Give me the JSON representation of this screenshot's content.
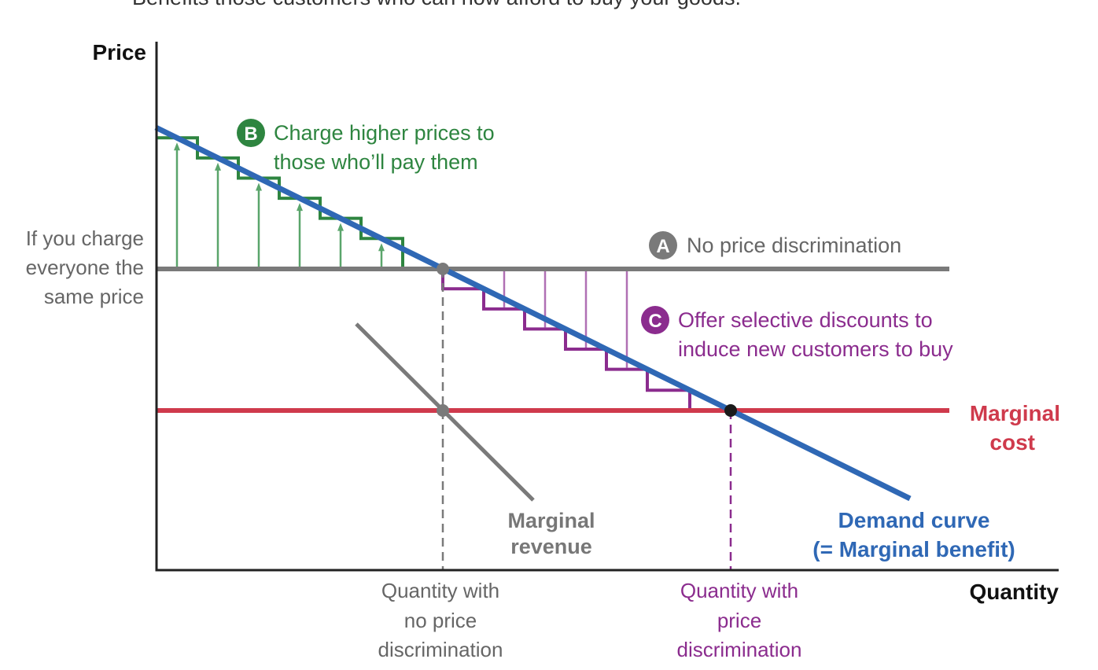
{
  "caption_partial": "Benefits those customers who can now afford to buy your goods.",
  "axes": {
    "y_label": "Price",
    "x_label": "Quantity"
  },
  "left_label": [
    "If you charge",
    "everyone the",
    "same price"
  ],
  "annotation_a": {
    "badge": "A",
    "text": "No price discrimination"
  },
  "annotation_b": {
    "badge": "B",
    "lines": [
      "Charge higher prices to",
      "those who’ll pay them"
    ]
  },
  "annotation_c": {
    "badge": "C",
    "lines": [
      "Offer selective discounts to",
      "induce new customers to buy"
    ]
  },
  "marginal_cost_label": [
    "Marginal",
    "cost"
  ],
  "marginal_revenue_label": [
    "Marginal",
    "revenue"
  ],
  "demand_label": [
    "Demand curve",
    "(= Marginal benefit)"
  ],
  "qty_no_pd_label": [
    "Quantity with",
    "no price",
    "discrimination"
  ],
  "qty_pd_label": [
    "Quantity with",
    "price",
    "discrimination"
  ],
  "colors": {
    "demand": "#2f68b5",
    "green": "#2e8540",
    "green_light": "#5aa56b",
    "purple": "#8b2c8e",
    "purple_light": "#b070b4",
    "gray": "#7a7a7a",
    "red": "#cf3a4c",
    "axis": "#222222"
  }
}
